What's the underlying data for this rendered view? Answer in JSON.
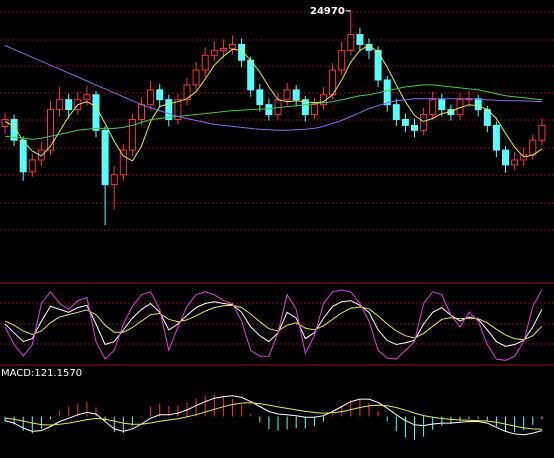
{
  "chart_data": [
    {
      "type": "candlestick",
      "up_color": "#ff3232",
      "down_color": "#54ffff",
      "ylim": [
        22700,
        25080
      ],
      "open": [
        23800,
        23870,
        23660,
        23340,
        23460,
        23560,
        23970,
        24070,
        23970,
        24070,
        24120,
        23760,
        23210,
        23310,
        23560,
        23870,
        24020,
        24170,
        24070,
        23870,
        24070,
        24220,
        24370,
        24520,
        24570,
        24590,
        24630,
        24470,
        24170,
        24020,
        23920,
        24070,
        24170,
        24070,
        23920,
        24020,
        24120,
        24370,
        24570,
        24730,
        24630,
        24570,
        24270,
        24020,
        23870,
        23810,
        23760,
        23920,
        24070,
        23970,
        23920,
        24070,
        24080,
        23970,
        23810,
        23560,
        23410,
        23460,
        23510,
        23660
      ],
      "high": [
        23940,
        23920,
        23700,
        23520,
        23640,
        24060,
        24200,
        24130,
        24150,
        24210,
        24160,
        23800,
        23400,
        23620,
        23930,
        24090,
        24260,
        24230,
        24120,
        24130,
        24290,
        24450,
        24600,
        24660,
        24680,
        24720,
        24690,
        24510,
        24230,
        24080,
        24140,
        24240,
        24220,
        24110,
        24090,
        24200,
        24440,
        24660,
        24970,
        24800,
        24690,
        24610,
        24310,
        24080,
        23930,
        23880,
        23990,
        24150,
        24130,
        24020,
        24140,
        24160,
        24120,
        24010,
        23850,
        23600,
        23540,
        23580,
        23720,
        23880
      ],
      "low": [
        23720,
        23600,
        23250,
        23290,
        23400,
        23510,
        23900,
        23880,
        23920,
        24010,
        23690,
        22800,
        22960,
        23250,
        23500,
        23810,
        23970,
        24000,
        23800,
        23820,
        24010,
        24160,
        24300,
        24460,
        24490,
        24530,
        24400,
        24100,
        23950,
        23860,
        23870,
        24010,
        24000,
        23850,
        23870,
        23970,
        24080,
        24320,
        24520,
        24560,
        24480,
        24200,
        23950,
        23800,
        23740,
        23690,
        23710,
        23870,
        23900,
        23860,
        23870,
        24000,
        23900,
        23740,
        23490,
        23330,
        23360,
        23400,
        23460,
        23610
      ],
      "close": [
        23870,
        23660,
        23340,
        23460,
        23560,
        23970,
        24070,
        23970,
        24070,
        24120,
        23760,
        23210,
        23310,
        23560,
        23870,
        24020,
        24170,
        24070,
        23870,
        24070,
        24220,
        24370,
        24520,
        24570,
        24590,
        24630,
        24470,
        24170,
        24020,
        23920,
        24070,
        24170,
        24070,
        23920,
        24020,
        24120,
        24370,
        24570,
        24730,
        24630,
        24570,
        24270,
        24020,
        23870,
        23810,
        23760,
        23920,
        24070,
        23970,
        23920,
        24070,
        24080,
        23970,
        23810,
        23560,
        23410,
        23460,
        23510,
        23660,
        23810
      ],
      "series": [
        {
          "color": "#e8e84a",
          "values": [
            23850,
            23800,
            23650,
            23550,
            23500,
            23600,
            23750,
            23900,
            24020,
            24050,
            24000,
            23830,
            23650,
            23500,
            23450,
            23600,
            23850,
            24000,
            24030,
            24050,
            24080,
            24150,
            24280,
            24420,
            24510,
            24580,
            24570,
            24470,
            24350,
            24200,
            24070,
            24050,
            24060,
            24050,
            24040,
            24050,
            24120,
            24270,
            24450,
            24570,
            24620,
            24550,
            24400,
            24220,
            24050,
            23910,
            23850,
            23880,
            23930,
            23950,
            23990,
            24020,
            24010,
            23970,
            23880,
            23730,
            23590,
            23490,
            23510,
            23570
          ]
        },
        {
          "color": "#3ccf3c",
          "values": [
            23700,
            23690,
            23680,
            23670,
            23680,
            23700,
            23720,
            23740,
            23760,
            23770,
            23780,
            23780,
            23780,
            23790,
            23810,
            23840,
            23870,
            23880,
            23890,
            23900,
            23910,
            23920,
            23930,
            23940,
            23950,
            23960,
            23965,
            23970,
            23975,
            23980,
            23990,
            24000,
            24010,
            24020,
            24030,
            24040,
            24050,
            24070,
            24090,
            24110,
            24120,
            24140,
            24160,
            24180,
            24200,
            24210,
            24220,
            24220,
            24210,
            24200,
            24190,
            24180,
            24170,
            24150,
            24130,
            24110,
            24100,
            24090,
            24080,
            24070
          ]
        },
        {
          "color": "#8a6cf0",
          "values": [
            24620,
            24580,
            24540,
            24500,
            24460,
            24420,
            24380,
            24340,
            24300,
            24260,
            24220,
            24180,
            24140,
            24100,
            24060,
            24020,
            23990,
            23960,
            23930,
            23900,
            23880,
            23860,
            23840,
            23820,
            23810,
            23800,
            23790,
            23780,
            23770,
            23765,
            23760,
            23760,
            23765,
            23770,
            23780,
            23800,
            23830,
            23860,
            23900,
            23940,
            23980,
            24010,
            24040,
            24060,
            24070,
            24080,
            24080,
            24080,
            24080,
            24080,
            24080,
            24080,
            24075,
            24070,
            24065,
            24060,
            24060,
            24060,
            24055,
            24050
          ]
        }
      ]
    },
    {
      "type": "line",
      "ylim": [
        -20,
        120
      ],
      "series": [
        {
          "color": "#ffffff",
          "values": [
            50,
            35,
            20,
            25,
            55,
            80,
            75,
            70,
            78,
            82,
            50,
            15,
            20,
            40,
            60,
            75,
            85,
            70,
            40,
            50,
            65,
            78,
            85,
            88,
            85,
            83,
            70,
            45,
            30,
            20,
            35,
            70,
            60,
            25,
            35,
            60,
            80,
            88,
            90,
            82,
            70,
            40,
            22,
            15,
            18,
            22,
            50,
            70,
            78,
            65,
            55,
            62,
            58,
            40,
            20,
            12,
            15,
            22,
            45,
            75
          ]
        },
        {
          "color": "#e8e84a",
          "values": [
            55,
            48,
            38,
            32,
            38,
            52,
            62,
            66,
            70,
            74,
            66,
            48,
            36,
            36,
            44,
            55,
            66,
            68,
            58,
            54,
            57,
            64,
            72,
            78,
            81,
            82,
            78,
            67,
            54,
            42,
            38,
            48,
            52,
            43,
            40,
            47,
            58,
            69,
            77,
            79,
            76,
            64,
            50,
            38,
            30,
            26,
            34,
            46,
            58,
            61,
            59,
            60,
            59,
            52,
            41,
            31,
            25,
            23,
            30,
            46
          ]
        },
        {
          "color": "#e040e0",
          "values": [
            45,
            15,
            -5,
            15,
            85,
            105,
            85,
            75,
            90,
            95,
            20,
            -10,
            5,
            50,
            80,
            100,
            105,
            75,
            5,
            45,
            80,
            100,
            105,
            100,
            90,
            85,
            55,
            5,
            -5,
            -5,
            35,
            100,
            75,
            0,
            30,
            85,
            105,
            108,
            105,
            85,
            55,
            5,
            -8,
            -10,
            5,
            20,
            85,
            105,
            100,
            65,
            45,
            70,
            55,
            15,
            -10,
            -12,
            -5,
            20,
            80,
            108
          ]
        }
      ]
    },
    {
      "type": "macd",
      "label": "MACD:121.1570",
      "up_color": "#ff3232",
      "down_color": "#54ffff",
      "ylim": [
        -500,
        500
      ],
      "bars": [
        -60,
        -96,
        -172,
        -202,
        -146,
        -36,
        68,
        118,
        158,
        174,
        108,
        -58,
        -190,
        -200,
        -112,
        6,
        116,
        156,
        124,
        132,
        170,
        216,
        252,
        266,
        244,
        212,
        138,
        30,
        -72,
        -154,
        -172,
        -154,
        -140,
        -144,
        -116,
        -60,
        32,
        122,
        194,
        204,
        164,
        66,
        -60,
        -176,
        -252,
        -282,
        -242,
        -160,
        -112,
        -90,
        -56,
        -28,
        -22,
        -50,
        -120,
        -176,
        -188,
        -166,
        -100,
        -32
      ],
      "series": [
        {
          "color": "#ffffff",
          "values": [
            -50,
            -80,
            -140,
            -180,
            -170,
            -120,
            -60,
            -20,
            20,
            50,
            30,
            -60,
            -150,
            -180,
            -150,
            -90,
            -20,
            20,
            20,
            40,
            80,
            130,
            180,
            220,
            240,
            250,
            230,
            180,
            120,
            60,
            30,
            20,
            10,
            -10,
            -10,
            10,
            60,
            120,
            180,
            210,
            210,
            170,
            100,
            20,
            -50,
            -100,
            -110,
            -90,
            -80,
            -80,
            -70,
            -60,
            -60,
            -80,
            -130,
            -180,
            -210,
            -220,
            -200,
            -170
          ]
        },
        {
          "color": "#e8e84a",
          "values": [
            -20,
            -32,
            -54,
            -79,
            -97,
            -102,
            -94,
            -79,
            -59,
            -37,
            -24,
            -31,
            -55,
            -80,
            -94,
            -93,
            -78,
            -58,
            -42,
            -26,
            -5,
            22,
            54,
            87,
            118,
            144,
            161,
            165,
            156,
            137,
            116,
            97,
            80,
            62,
            48,
            40,
            44,
            59,
            83,
            108,
            128,
            137,
            130,
            108,
            76,
            41,
            11,
            -10,
            -24,
            -35,
            -42,
            -46,
            -49,
            -55,
            -70,
            -92,
            -116,
            -137,
            -150,
            -154
          ]
        }
      ]
    }
  ]
}
